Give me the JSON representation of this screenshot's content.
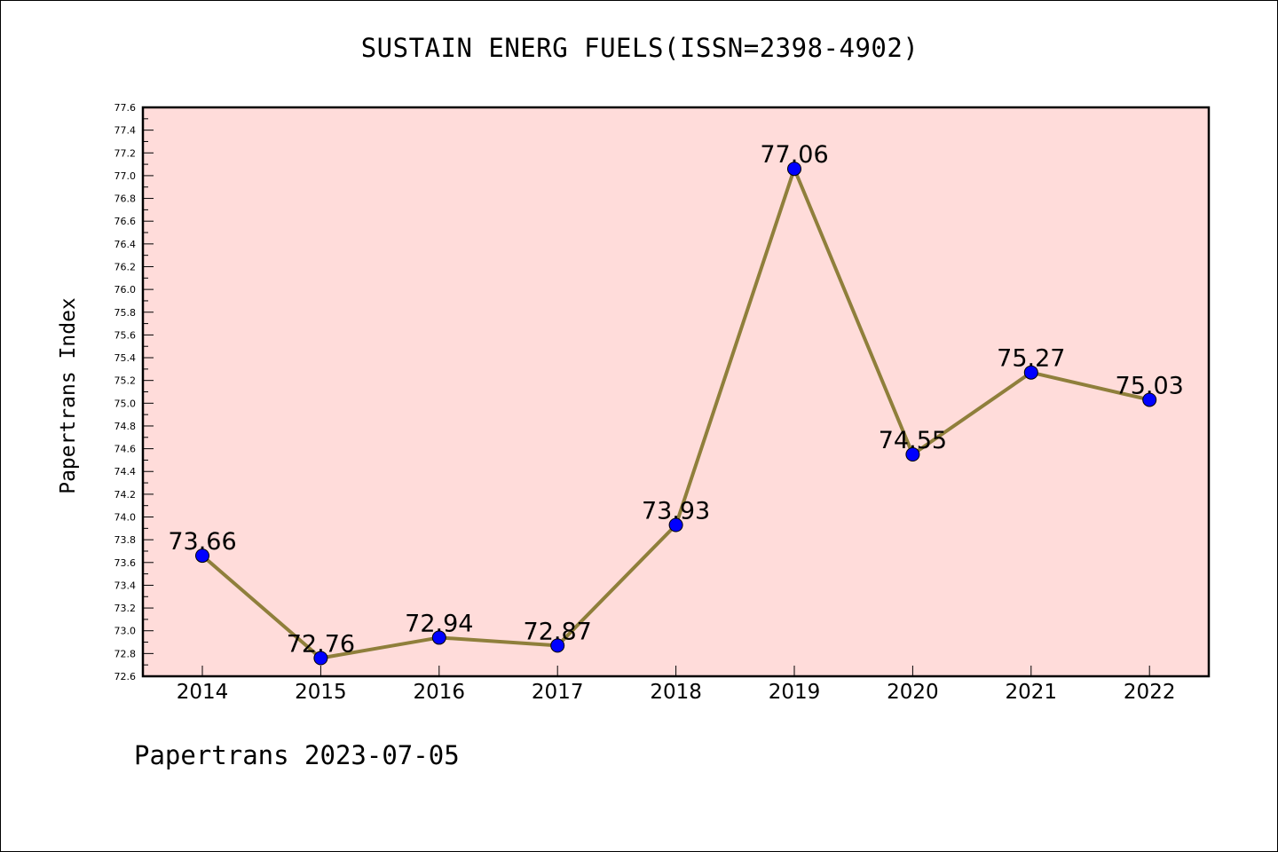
{
  "chart_data": {
    "type": "line",
    "title": "SUSTAIN ENERG FUELS(ISSN=2398-4902)",
    "ylabel": "Papertrans Index",
    "xlabel": "",
    "footer": "Papertrans 2023-07-05",
    "categories": [
      "2014",
      "2015",
      "2016",
      "2017",
      "2018",
      "2019",
      "2020",
      "2021",
      "2022"
    ],
    "series": [
      {
        "values": [
          73.66,
          72.76,
          72.94,
          72.87,
          73.93,
          77.06,
          74.55,
          75.27,
          75.03
        ],
        "labels": [
          "73.66",
          "72.76",
          "72.94",
          "72.87",
          "73.93",
          "77.06",
          "74.55",
          "75.27",
          "75.03"
        ]
      }
    ],
    "ylim": [
      72.6,
      77.6
    ],
    "y_tick_step": 0.2,
    "y_tick_labels": [
      "72.6",
      "72.8",
      "73.0",
      "73.2",
      "73.4",
      "73.6",
      "73.8",
      "74.0",
      "74.2",
      "74.4",
      "74.6",
      "74.8",
      "75.0",
      "75.2",
      "75.4",
      "75.6",
      "75.8",
      "76.0",
      "76.2",
      "76.4",
      "76.6",
      "76.8",
      "77.0",
      "77.2",
      "77.4",
      "77.6"
    ],
    "grid": false,
    "colors": {
      "plot_background": "#FFDCDA",
      "line": "#8F7F3B",
      "marker": "#0000FF",
      "axis": "#000000"
    }
  }
}
